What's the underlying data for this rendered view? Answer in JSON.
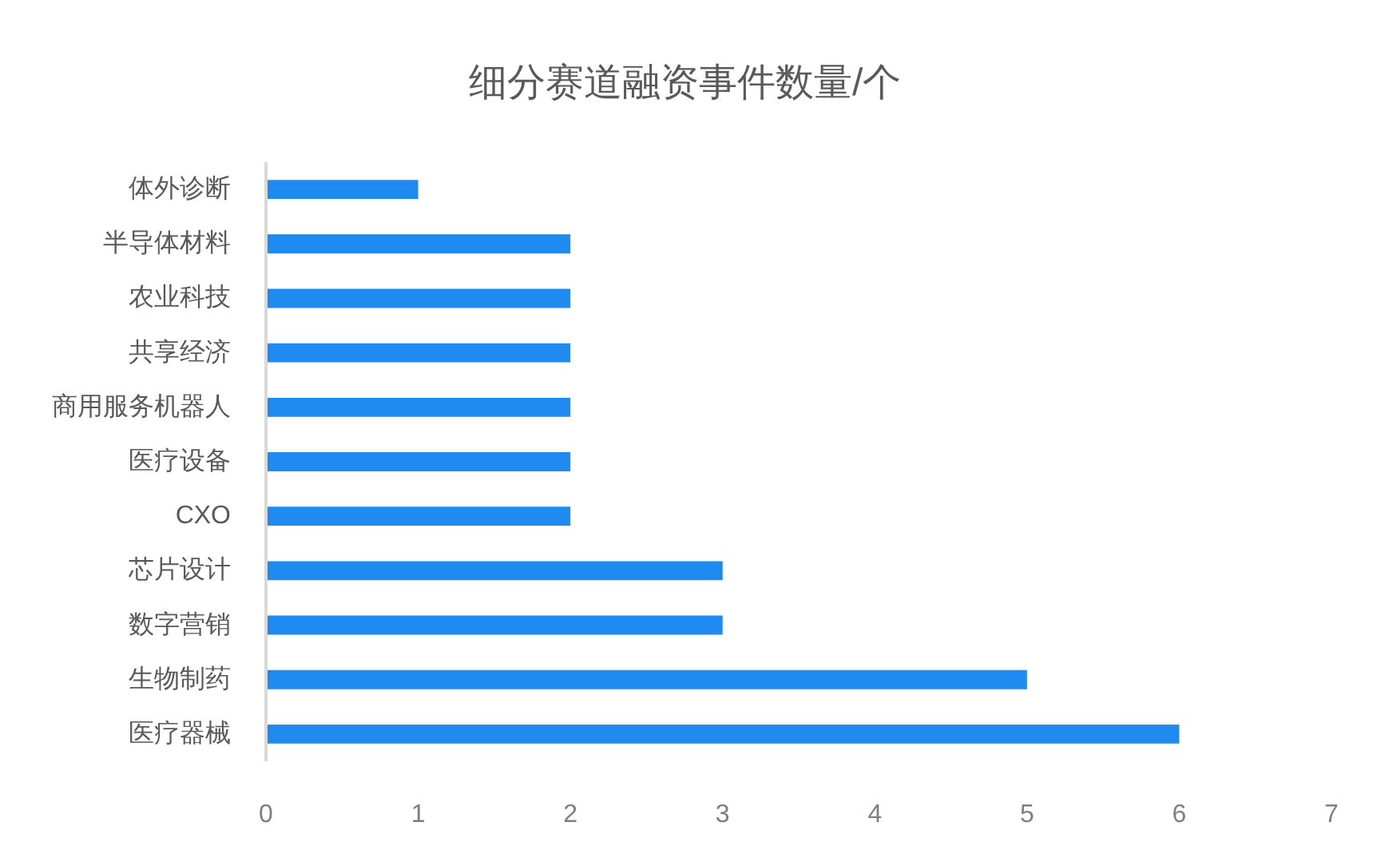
{
  "chart_data": {
    "type": "bar",
    "orientation": "horizontal",
    "title": "细分赛道融资事件数量/个",
    "categories": [
      "体外诊断",
      "半导体材料",
      "农业科技",
      "共享经济",
      "商用服务机器人",
      "医疗设备",
      "CXO",
      "芯片设计",
      "数字营销",
      "生物制药",
      "医疗器械"
    ],
    "values": [
      1,
      2,
      2,
      2,
      2,
      2,
      2,
      3,
      3,
      5,
      6
    ],
    "color": "#1f8bf0",
    "xlim": [
      0,
      7
    ],
    "xticks": [
      0,
      1,
      2,
      3,
      4,
      5,
      6,
      7
    ]
  }
}
